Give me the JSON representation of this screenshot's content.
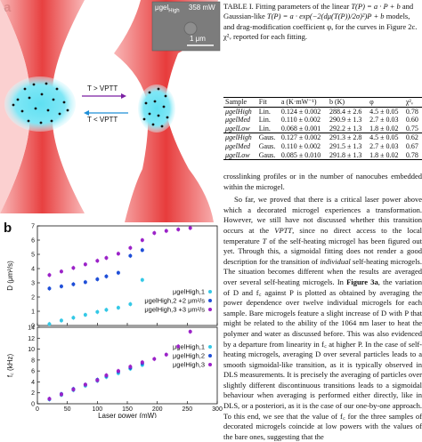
{
  "panel_a": {
    "label": "a",
    "arrow_top": "T > VPTT",
    "arrow_bottom": "T < VPTT",
    "inset_name": "μgel",
    "inset_sub": "High",
    "inset_power": "358 mW",
    "scale_bar": "1 μm"
  },
  "panel_b": {
    "label": "b"
  },
  "caption": {
    "lead": "TABLE I. Fitting parameters of the linear",
    "formula1": "T(P) = a · P + b",
    "mid": "and Gaussian-like",
    "formula2": "T(P) = a · exp(−2(dμ(T(P))/2σ)²)P + b",
    "rest": "models, and drag-modification coefficient φ, for the curves in Figure 2c. χ²ᵥ reported for each fitting."
  },
  "table": {
    "headers": [
      "Sample",
      "Fit",
      "a (K·mW⁻¹)",
      "b (K)",
      "φ",
      "χ²ᵥ"
    ],
    "rows": [
      [
        "μgelHigh",
        "Lin.",
        "0.124 ± 0.002",
        "288.4 ± 2.6",
        "4.5 ± 0.05",
        "0.78"
      ],
      [
        "μgelMed",
        "Lin.",
        "0.110 ± 0.002",
        "290.9 ± 1.3",
        "2.7 ± 0.03",
        "0.60"
      ],
      [
        "μgelLow",
        "Lin.",
        "0.068 ± 0.001",
        "292.2 ± 1.3",
        "1.8 ± 0.02",
        "0.75"
      ],
      [
        "μgelHigh",
        "Gaus.",
        "0.127 ± 0.002",
        "291.3 ± 2.8",
        "4.5 ± 0.05",
        "0.62"
      ],
      [
        "μgelMed",
        "Gaus.",
        "0.110 ± 0.002",
        "291.5 ± 1.3",
        "2.7 ± 0.03",
        "0.67"
      ],
      [
        "μgelLow",
        "Gaus.",
        "0.085 ± 0.010",
        "291.8 ± 1.3",
        "1.8 ± 0.02",
        "0.78"
      ]
    ]
  },
  "body": {
    "p1": "crosslinking profiles or in the number of nanocubes embedded within the microgel.",
    "p2a": "So far, we proved that there is a critical laser power above which a decorated microgel experiences a transformation. However, we still have not discussed whether this transition occurs at the ",
    "p2b": "VPTT",
    "p2c": ", since no direct access to the local temperature ",
    "p2d": "T",
    "p2e": " of the self-heating microgel has been figured out yet. Through this, a sigmoidal fitting does not render a good description for the transition of ",
    "p2f": "individual",
    "p2g": " self-heating microgels. The situation becomes different when the results are averaged over several self-heating microgels. In ",
    "p2h": "Figure 3a",
    "p2i": ", the variation of D and f꜀ against P is plotted as obtained by averaging the power dependence over twelve individual microgels for each sample. Bare microgels feature a slight increase of D with P that might be related to the ability of the 1064 nm laser to heat the polymer and water as discussed before. This was also evidenced by a departure from linearity in f꜀ at higher P. In the case of self-heating microgels, averaging D over several particles leads to a smooth sigmoidal-like transition, as it is typically observed in DLS measurements. It is precisely the averaging of particles over slightly different discontinuous transitions leads to a sigmoidal behaviour when averaging is performed either directly, like in DLS, or a posteriori, as it is the case of our one-by-one approach. To this end, we see that the value of f꜀ for the three samples of decorated microgels coincide at low powers with the values of the bare ones, suggesting that the"
  },
  "chart_data": [
    {
      "type": "scatter",
      "title": "",
      "xlabel": "",
      "ylabel": "D (μm²/s)",
      "xlim": [
        0,
        300
      ],
      "ylim": [
        0,
        7
      ],
      "xticks": [
        0,
        50,
        100,
        150,
        200,
        250,
        300
      ],
      "yticks": [
        0,
        1,
        2,
        3,
        4,
        5,
        6,
        7
      ],
      "legend_position": "bottom-right",
      "series": [
        {
          "name": "μgelHigh,1",
          "color": "#33c8e6",
          "x": [
            20,
            40,
            60,
            80,
            100,
            115,
            135,
            155,
            175
          ],
          "y": [
            0.1,
            0.35,
            0.55,
            0.75,
            0.95,
            1.1,
            1.25,
            1.5,
            3.2
          ]
        },
        {
          "name": "μgelHigh,2 +2 μm²/s",
          "color": "#1f4fd8",
          "x": [
            20,
            40,
            60,
            80,
            100,
            115,
            135,
            155,
            175
          ],
          "y": [
            2.6,
            2.75,
            2.9,
            3.05,
            3.25,
            3.45,
            3.7,
            4.9,
            5.3
          ]
        },
        {
          "name": "μgelHigh,3 +3 μm²/s",
          "color": "#9b22c8",
          "x": [
            20,
            40,
            60,
            80,
            100,
            115,
            135,
            155,
            175,
            195,
            215,
            235,
            255
          ],
          "y": [
            3.55,
            3.8,
            4.05,
            4.3,
            4.55,
            4.75,
            5.05,
            5.45,
            6.0,
            6.5,
            6.65,
            6.75,
            6.85
          ]
        }
      ]
    },
    {
      "type": "scatter",
      "title": "",
      "xlabel": "Laser power (mW)",
      "ylabel": "f꜀ (kHz)",
      "xlim": [
        0,
        300
      ],
      "ylim": [
        0,
        14
      ],
      "xticks": [
        0,
        50,
        100,
        150,
        200,
        250,
        300
      ],
      "yticks": [
        0,
        2,
        4,
        6,
        8,
        10,
        12,
        14
      ],
      "legend_position": "center-right",
      "series": [
        {
          "name": "μgelHigh,1",
          "color": "#33c8e6",
          "x": [
            20,
            40,
            60,
            80,
            100,
            115,
            135,
            155,
            175
          ],
          "y": [
            0.8,
            1.6,
            2.5,
            3.3,
            4.2,
            4.9,
            5.6,
            6.4,
            7.1
          ]
        },
        {
          "name": "μgelHigh,2",
          "color": "#1f4fd8",
          "x": [
            20,
            40,
            60,
            80,
            100,
            115,
            135,
            155,
            175
          ],
          "y": [
            0.9,
            1.8,
            2.7,
            3.5,
            4.4,
            5.1,
            5.9,
            6.6,
            7.4
          ]
        },
        {
          "name": "μgelHigh,3",
          "color": "#9b22c8",
          "x": [
            20,
            40,
            60,
            80,
            100,
            115,
            135,
            155,
            175,
            195,
            215,
            235,
            255
          ],
          "y": [
            0.9,
            1.7,
            2.6,
            3.5,
            4.3,
            5.2,
            6.0,
            6.8,
            7.6,
            8.2,
            9.0,
            10.5,
            13.2
          ]
        }
      ]
    }
  ]
}
